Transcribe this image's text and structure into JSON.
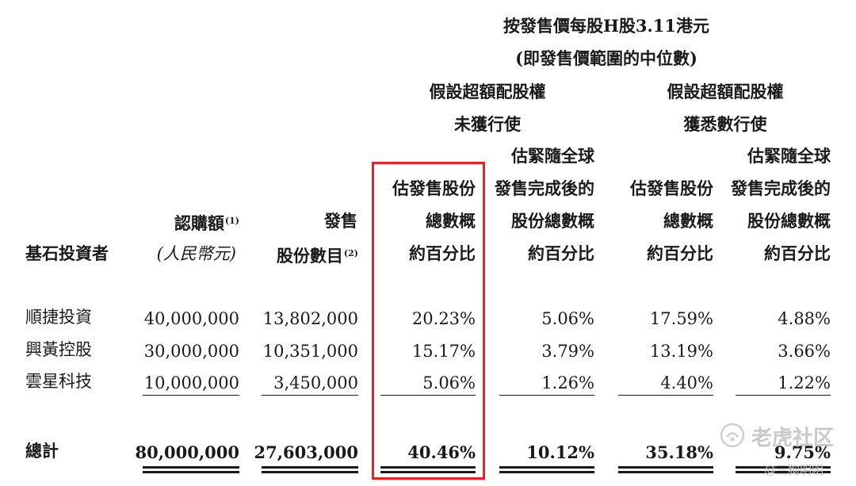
{
  "header": {
    "price_line1": "按發售價每股H股3.11港元",
    "price_line2": "(即發售價範圍的中位數)",
    "group_not_exercised": [
      "假設超額配股權",
      "未獲行使"
    ],
    "group_exercised": [
      "假設超額配股權",
      "獲悉數行使"
    ]
  },
  "columns": {
    "investor": "基石投資者",
    "subscription": {
      "line1": "認購額",
      "sup": "(1)",
      "line2": "(人民幣元)"
    },
    "shares": {
      "line1": "發售",
      "line2": "股份數目",
      "sup": "(2)"
    },
    "pct_offer": [
      "估發售股份",
      "總數概",
      "約百分比"
    ],
    "pct_global": [
      "估緊隨全球",
      "發售完成後的",
      "股份總數概",
      "約百分比"
    ]
  },
  "rows": [
    {
      "name": "順捷投資",
      "amount": "40,000,000",
      "shares": "13,802,000",
      "p1": "20.23%",
      "p2": "5.06%",
      "p3": "17.59%",
      "p4": "4.88%"
    },
    {
      "name": "興黃控股",
      "amount": "30,000,000",
      "shares": "10,351,000",
      "p1": "15.17%",
      "p2": "3.79%",
      "p3": "13.19%",
      "p4": "3.66%"
    },
    {
      "name": "雲星科技",
      "amount": "10,000,000",
      "shares": "3,450,000",
      "p1": "5.06%",
      "p2": "1.26%",
      "p3": "4.40%",
      "p4": "1.22%"
    }
  ],
  "total": {
    "name": "總計",
    "amount": "80,000,000",
    "shares": "27,603,000",
    "p1": "40.46%",
    "p2": "10.12%",
    "p3": "35.18%",
    "p4": "9.75%"
  },
  "highlight_color": "#e3262c",
  "watermark": {
    "brand": "老虎社区",
    "user": "@三狗明明",
    "icon": "tiger-logo-icon"
  }
}
